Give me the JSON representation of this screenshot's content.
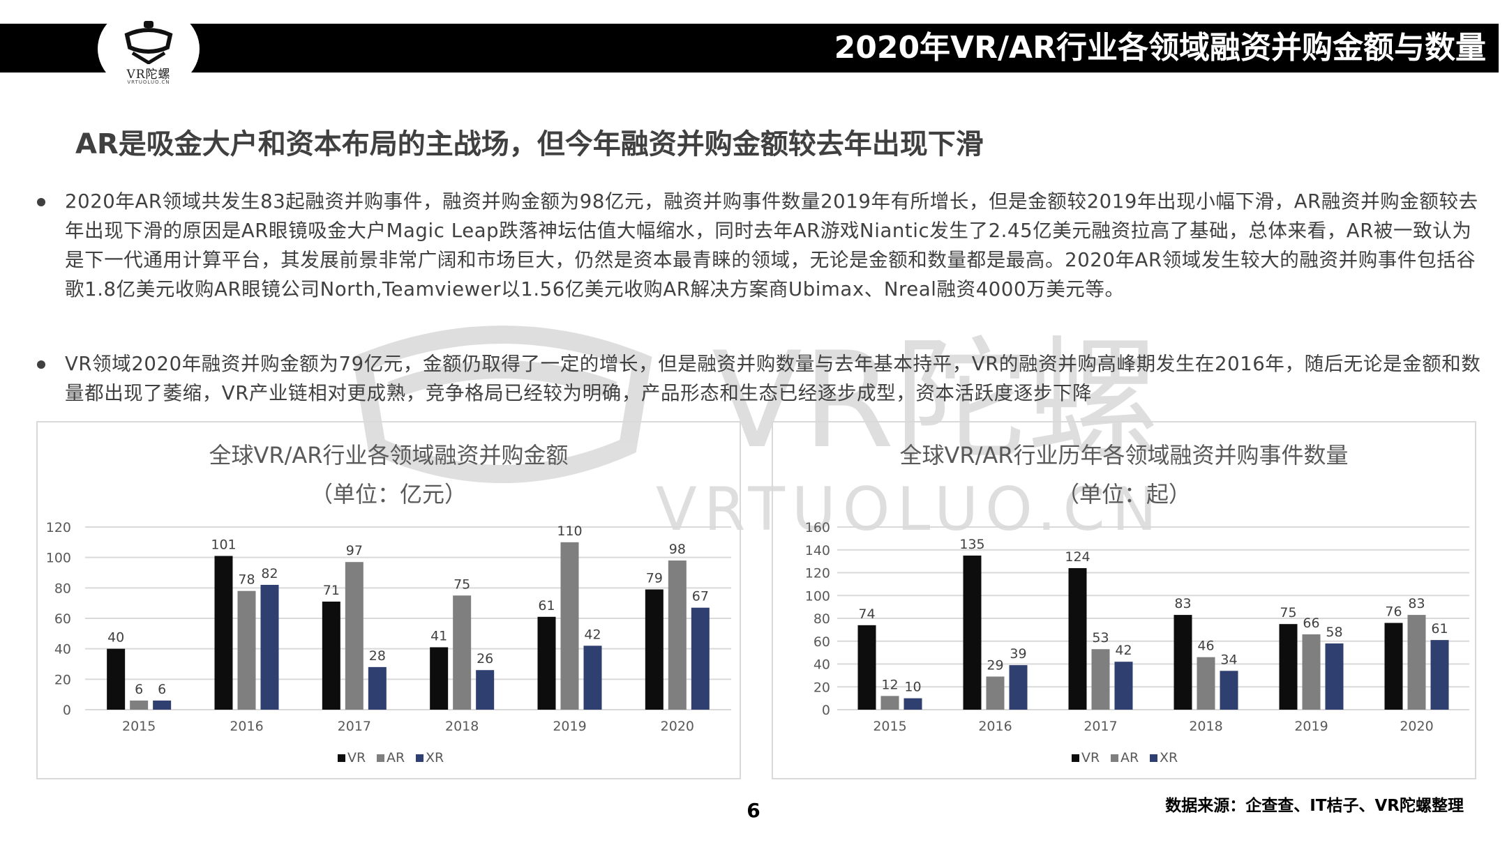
{
  "header": {
    "title": "2020年VR/AR行业各领域融资并购金额与数量",
    "logo_text": "VR陀螺",
    "logo_sub": "VRTUOLUO.CN"
  },
  "watermark": {
    "brand": "VR陀螺",
    "url": "VRTUOLUO.CN"
  },
  "headline": "AR是吸金大户和资本布局的主战场，但今年融资并购金额较去年出现下滑",
  "bullets": [
    "2020年AR领域共发生83起融资并购事件，融资并购金额为98亿元，融资并购事件数量2019年有所增长，但是金额较2019年出现小幅下滑，AR融资并购金额较去年出现下滑的原因是AR眼镜吸金大户Magic Leap跌落神坛估值大幅缩水，同时去年AR游戏Niantic发生了2.45亿美元融资拉高了基础，总体来看，AR被一致认为是下一代通用计算平台，其发展前景非常广阔和市场巨大，仍然是资本最青睐的领域，无论是金额和数量都是最高。2020年AR领域发生较大的融资并购事件包括谷歌1.8亿美元收购AR眼镜公司North,Teamviewer以1.56亿美元收购AR解决方案商Ubimax、Nreal融资4000万美元等。",
    "VR领域2020年融资并购金额为79亿元，金额仍取得了一定的增长，但是融资并购数量与去年基本持平，VR的融资并购高峰期发生在2016年，随后无论是金额和数量都出现了萎缩，VR产业链相对更成熟，竞争格局已经较为明确，产品形态和生态已经逐步成型，资本活跃度逐步下降"
  ],
  "colors": {
    "VR": "#0d0d0d",
    "AR": "#7f7f7f",
    "XR": "#2f3f6f",
    "grid": "#d9d9d9"
  },
  "chart_data": [
    {
      "type": "bar",
      "title": "全球VR/AR行业各领域融资并购金额",
      "unit": "（单位：亿元）",
      "categories": [
        "2015",
        "2016",
        "2017",
        "2018",
        "2019",
        "2020"
      ],
      "series": [
        {
          "name": "VR",
          "values": [
            40,
            101,
            71,
            41,
            61,
            79
          ]
        },
        {
          "name": "AR",
          "values": [
            6,
            78,
            97,
            75,
            110,
            98
          ]
        },
        {
          "name": "XR",
          "values": [
            6,
            82,
            28,
            26,
            42,
            67
          ]
        }
      ],
      "yticks": [
        "0",
        "20",
        "40",
        "60",
        "80",
        "100",
        "120"
      ],
      "ylim": [
        0,
        120
      ],
      "grid": true,
      "legend": "bottom-center"
    },
    {
      "type": "bar",
      "title": "全球VR/AR行业历年各领域融资并购事件数量",
      "unit": "（单位：起）",
      "categories": [
        "2015",
        "2016",
        "2017",
        "2018",
        "2019",
        "2020"
      ],
      "series": [
        {
          "name": "VR",
          "values": [
            74,
            135,
            124,
            83,
            75,
            76
          ]
        },
        {
          "name": "AR",
          "values": [
            12,
            29,
            53,
            46,
            66,
            83
          ]
        },
        {
          "name": "XR",
          "values": [
            10,
            39,
            42,
            34,
            58,
            61
          ]
        }
      ],
      "yticks": [
        "0",
        "20",
        "40",
        "60",
        "80",
        "100",
        "120",
        "140",
        "160"
      ],
      "ylim": [
        0,
        160
      ],
      "grid": true,
      "legend": "bottom-center"
    }
  ],
  "footer": {
    "page_number": "6",
    "source": "数据来源：企查查、IT桔子、VR陀螺整理"
  }
}
